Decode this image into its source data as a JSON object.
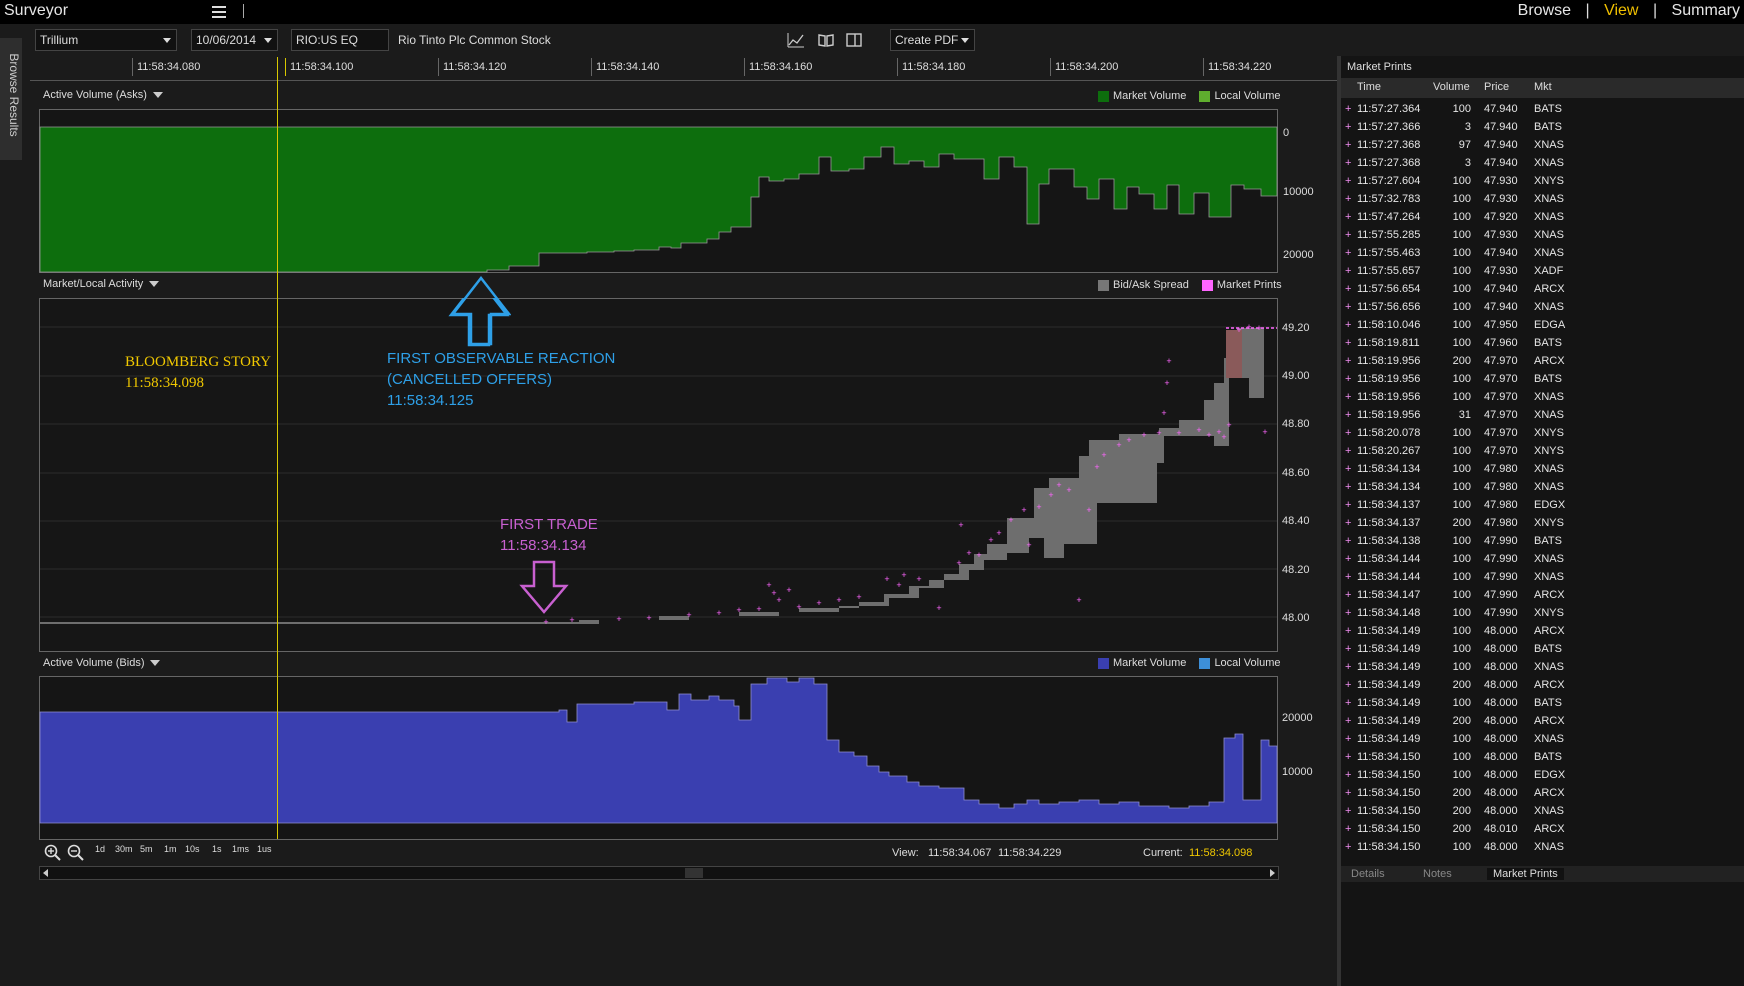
{
  "app": {
    "title": "Surveyor"
  },
  "nav": {
    "browse": "Browse",
    "view": "View",
    "summary": "Summary",
    "separator": "|"
  },
  "left_tab": {
    "label": "Browse Results"
  },
  "toolbar": {
    "source": "Trillium",
    "date": "10/06/2014",
    "symbol": "RIO:US EQ",
    "description": "Rio Tinto Plc Common Stock",
    "create_pdf": "Create PDF"
  },
  "time_axis": {
    "ticks": [
      "11:58:34.080",
      "11:58:34.100",
      "11:58:34.120",
      "11:58:34.140",
      "11:58:34.160",
      "11:58:34.180",
      "11:58:34.200",
      "11:58:34.220"
    ]
  },
  "panels": {
    "asks": {
      "title": "Active Volume (Asks)",
      "legend": [
        "Market Volume",
        "Local Volume"
      ],
      "y_ticks": [
        "0",
        "10000",
        "20000"
      ],
      "colors": {
        "market": "#0d6e0d",
        "local": "#5fae2e"
      }
    },
    "activity": {
      "title": "Market/Local Activity",
      "legend": [
        "Bid/Ask Spread",
        "Market Prints"
      ],
      "y_ticks": [
        "49.20",
        "49.00",
        "48.80",
        "48.60",
        "48.40",
        "48.20",
        "48.00"
      ],
      "colors": {
        "spread": "#777777",
        "prints": "#ff66ff"
      }
    },
    "bids": {
      "title": "Active Volume (Bids)",
      "legend": [
        "Market Volume",
        "Local Volume"
      ],
      "y_ticks": [
        "20000",
        "10000"
      ],
      "colors": {
        "market": "#3a3fb0",
        "local": "#3d8fd8"
      }
    }
  },
  "annotations": {
    "bloomberg_title": "BLOOMBERG STORY",
    "bloomberg_time": "11:58:34.098",
    "reaction_line1": "FIRST OBSERVABLE REACTION",
    "reaction_line2": "(CANCELLED OFFERS)",
    "reaction_time": "11:58:34.125",
    "trade_title": "FIRST TRADE",
    "trade_time": "11:58:34.134"
  },
  "bottom": {
    "zoom_levels": [
      "1d",
      "30m",
      "5m",
      "1m",
      "10s",
      "1s",
      "1ms",
      "1us"
    ],
    "view_label": "View:",
    "view_start": "11:58:34.067",
    "view_end": "11:58:34.229",
    "current_label": "Current:",
    "current_value": "11:58:34.098"
  },
  "market_prints": {
    "title": "Market Prints",
    "columns": [
      "Time",
      "Volume",
      "Price",
      "Mkt"
    ],
    "rows": [
      [
        "11:57:27.364",
        "100",
        "47.940",
        "BATS"
      ],
      [
        "11:57:27.366",
        "3",
        "47.940",
        "BATS"
      ],
      [
        "11:57:27.368",
        "97",
        "47.940",
        "XNAS"
      ],
      [
        "11:57:27.368",
        "3",
        "47.940",
        "XNAS"
      ],
      [
        "11:57:27.604",
        "100",
        "47.930",
        "XNYS"
      ],
      [
        "11:57:32.783",
        "100",
        "47.930",
        "XNAS"
      ],
      [
        "11:57:47.264",
        "100",
        "47.920",
        "XNAS"
      ],
      [
        "11:57:55.285",
        "100",
        "47.930",
        "XNAS"
      ],
      [
        "11:57:55.463",
        "100",
        "47.940",
        "XNAS"
      ],
      [
        "11:57:55.657",
        "100",
        "47.930",
        "XADF"
      ],
      [
        "11:57:56.654",
        "100",
        "47.940",
        "ARCX"
      ],
      [
        "11:57:56.656",
        "100",
        "47.940",
        "XNAS"
      ],
      [
        "11:58:10.046",
        "100",
        "47.950",
        "EDGA"
      ],
      [
        "11:58:19.811",
        "100",
        "47.960",
        "BATS"
      ],
      [
        "11:58:19.956",
        "200",
        "47.970",
        "ARCX"
      ],
      [
        "11:58:19.956",
        "100",
        "47.970",
        "BATS"
      ],
      [
        "11:58:19.956",
        "100",
        "47.970",
        "XNAS"
      ],
      [
        "11:58:19.956",
        "31",
        "47.970",
        "XNAS"
      ],
      [
        "11:58:20.078",
        "100",
        "47.970",
        "XNYS"
      ],
      [
        "11:58:20.267",
        "100",
        "47.970",
        "XNYS"
      ],
      [
        "11:58:34.134",
        "100",
        "47.980",
        "XNAS"
      ],
      [
        "11:58:34.134",
        "100",
        "47.980",
        "XNAS"
      ],
      [
        "11:58:34.137",
        "100",
        "47.980",
        "EDGX"
      ],
      [
        "11:58:34.137",
        "200",
        "47.980",
        "XNYS"
      ],
      [
        "11:58:34.138",
        "100",
        "47.990",
        "BATS"
      ],
      [
        "11:58:34.144",
        "100",
        "47.990",
        "XNAS"
      ],
      [
        "11:58:34.144",
        "100",
        "47.990",
        "XNAS"
      ],
      [
        "11:58:34.147",
        "100",
        "47.990",
        "ARCX"
      ],
      [
        "11:58:34.148",
        "100",
        "47.990",
        "XNYS"
      ],
      [
        "11:58:34.149",
        "100",
        "48.000",
        "ARCX"
      ],
      [
        "11:58:34.149",
        "100",
        "48.000",
        "BATS"
      ],
      [
        "11:58:34.149",
        "100",
        "48.000",
        "XNAS"
      ],
      [
        "11:58:34.149",
        "200",
        "48.000",
        "ARCX"
      ],
      [
        "11:58:34.149",
        "100",
        "48.000",
        "BATS"
      ],
      [
        "11:58:34.149",
        "200",
        "48.000",
        "ARCX"
      ],
      [
        "11:58:34.149",
        "100",
        "48.000",
        "XNAS"
      ],
      [
        "11:58:34.150",
        "100",
        "48.000",
        "BATS"
      ],
      [
        "11:58:34.150",
        "100",
        "48.000",
        "EDGX"
      ],
      [
        "11:58:34.150",
        "200",
        "48.000",
        "ARCX"
      ],
      [
        "11:58:34.150",
        "200",
        "48.000",
        "XNAS"
      ],
      [
        "11:58:34.150",
        "200",
        "48.010",
        "ARCX"
      ],
      [
        "11:58:34.150",
        "100",
        "48.000",
        "XNAS"
      ]
    ],
    "tabs": [
      "Details",
      "Notes",
      "Market Prints"
    ]
  }
}
